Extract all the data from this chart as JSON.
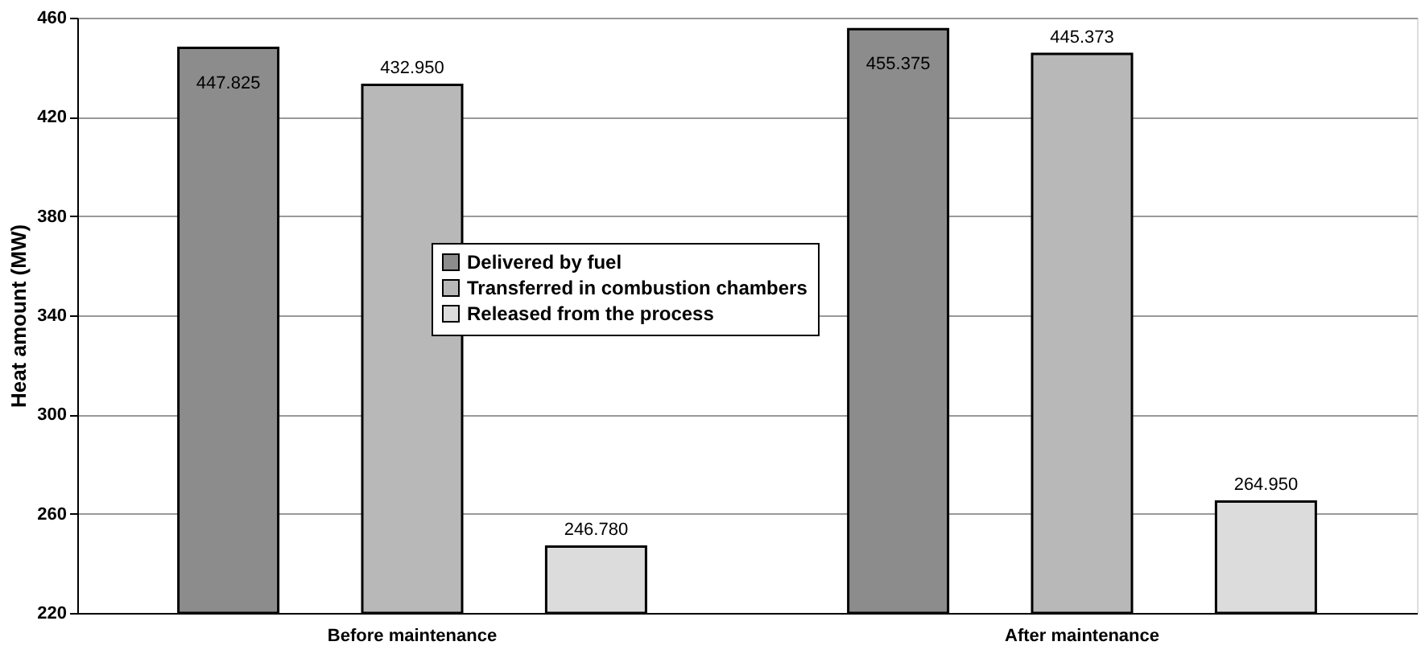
{
  "chart_data": {
    "type": "bar",
    "ylabel": "Heat amount (MW)",
    "categories": [
      "Before maintenance",
      "After maintenance"
    ],
    "series": [
      {
        "name": "Delivered by fuel",
        "color": "#8c8c8c",
        "values": [
          447.825,
          455.375
        ],
        "value_labels": [
          "447.825",
          "455.375"
        ]
      },
      {
        "name": "Transferred in combustion chambers",
        "color": "#b8b8b8",
        "values": [
          432.95,
          445.373
        ],
        "value_labels": [
          "432.950",
          "445.373"
        ]
      },
      {
        "name": "Released from the process",
        "color": "#dcdcdc",
        "values": [
          246.78,
          264.95
        ],
        "value_labels": [
          "246.780",
          "264.950"
        ]
      }
    ],
    "ylim": [
      220,
      460
    ],
    "yticks": [
      220,
      260,
      300,
      340,
      380,
      420,
      460
    ],
    "grid": "y",
    "legend": "center"
  }
}
